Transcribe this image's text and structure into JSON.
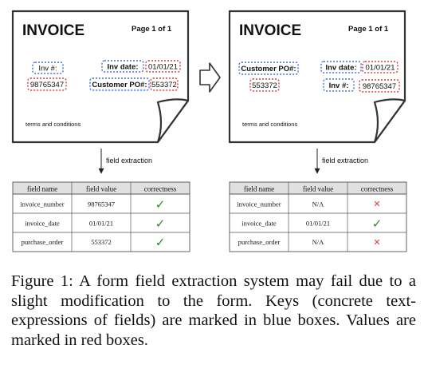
{
  "left_form": {
    "title": "INVOICE",
    "page": "Page 1 of 1",
    "inv_key": "Inv #:",
    "inv_value": "98765347",
    "date_key": "Inv date:",
    "date_value": "01/01/21",
    "po_key": "Customer PO#:",
    "po_value": "553372",
    "terms": "terms and conditions"
  },
  "right_form": {
    "title": "INVOICE",
    "page": "Page 1 of 1",
    "po_key": "Customer PO#:",
    "po_value": "553372",
    "date_key": "Inv date:",
    "date_value": "01/01/21",
    "inv_key": "Inv #:",
    "inv_value": "98765347",
    "terms": "terms and conditions"
  },
  "arrow_label": "field extraction",
  "left_table": {
    "headers": [
      "field name",
      "field value",
      "correctness"
    ],
    "rows": [
      {
        "name": "invoice_number",
        "value": "98765347",
        "mark": "✓"
      },
      {
        "name": "invoice_date",
        "value": "01/01/21",
        "mark": "✓"
      },
      {
        "name": "purchase_order",
        "value": "553372",
        "mark": "✓"
      }
    ]
  },
  "right_table": {
    "headers": [
      "field name",
      "field value",
      "correctness"
    ],
    "rows": [
      {
        "name": "invoice_number",
        "value": "N/A",
        "mark": "✕"
      },
      {
        "name": "invoice_date",
        "value": "01/01/21",
        "mark": "✓"
      },
      {
        "name": "purchase_order",
        "value": "N/A",
        "mark": "✕"
      }
    ]
  },
  "colors": {
    "key_box": "#3a6fd8",
    "value_box": "#d83a3a",
    "check": "#2a8a2a",
    "cross": "#d83a3a",
    "header_bg": "#e0e0e0"
  },
  "icons": {
    "transition": "right-arrow-icon",
    "check": "check-icon",
    "cross": "cross-icon"
  },
  "caption": "Figure 1: A form field extraction system may fail due to a slight modification to the form. Keys (concrete text-expressions of fields) are marked in blue boxes. Values are marked in red boxes."
}
